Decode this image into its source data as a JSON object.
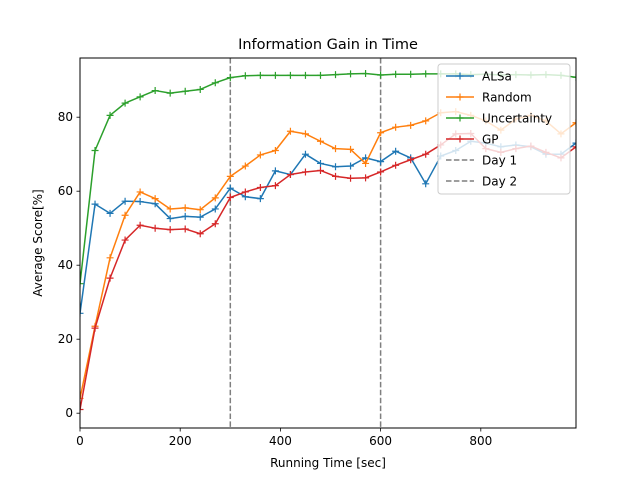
{
  "chart_data": {
    "type": "line",
    "title": "Information Gain in Time",
    "xlabel": "Running Time [sec]",
    "ylabel": "Average Score[%]",
    "xlim": [
      0,
      990
    ],
    "ylim": [
      -4,
      96
    ],
    "xticks": [
      0,
      200,
      400,
      600,
      800
    ],
    "yticks": [
      0,
      20,
      40,
      60,
      80
    ],
    "grid": false,
    "legend_position": "top-right",
    "x": [
      0,
      30,
      60,
      90,
      120,
      150,
      180,
      210,
      240,
      270,
      300,
      330,
      360,
      390,
      420,
      450,
      480,
      510,
      540,
      570,
      600,
      630,
      660,
      690,
      720,
      750,
      780,
      810,
      840,
      870,
      900,
      930,
      960,
      990
    ],
    "series": [
      {
        "name": "ALSa",
        "color": "#1f77b4",
        "values": [
          27,
          56.5,
          54,
          57.3,
          57.2,
          56.6,
          52.6,
          53.2,
          53,
          55.2,
          60.8,
          58.5,
          58,
          65.5,
          64.5,
          70,
          67.5,
          66.6,
          66.8,
          69,
          68,
          70.8,
          69,
          62,
          69.5,
          71,
          73.5,
          73,
          72,
          72.5,
          72,
          70,
          70,
          73
        ]
      },
      {
        "name": "Random",
        "color": "#ff7f0e",
        "values": [
          4,
          23.5,
          42,
          53.5,
          59.8,
          58,
          55.2,
          55.5,
          55,
          58.2,
          64,
          66.8,
          69.8,
          71,
          76.2,
          75.5,
          73.5,
          71.5,
          71.3,
          67.5,
          75.8,
          77.3,
          77.8,
          79,
          81.2,
          81.5,
          80.5,
          79,
          76.5,
          79.5,
          80.5,
          79,
          75.5,
          78.5
        ]
      },
      {
        "name": "Uncertainty",
        "color": "#2ca02c",
        "values": [
          35,
          71,
          80.5,
          83.8,
          85.5,
          87.2,
          86.5,
          87,
          87.5,
          89.3,
          90.7,
          91.2,
          91.3,
          91.3,
          91.3,
          91.3,
          91.3,
          91.5,
          91.7,
          91.8,
          91.4,
          91.6,
          91.6,
          91.7,
          91.7,
          91.7,
          91.5,
          91.6,
          91.4,
          91.5,
          91.4,
          91.5,
          91.3,
          90.8
        ]
      },
      {
        "name": "GP",
        "color": "#d62728",
        "values": [
          1,
          23,
          36.5,
          46.8,
          50.8,
          50,
          49.6,
          49.8,
          48.5,
          51.2,
          58.3,
          59.8,
          61,
          61.5,
          64.5,
          65.2,
          65.6,
          64,
          63.5,
          63.6,
          65.2,
          67,
          68.5,
          70,
          72.5,
          75.5,
          75.6,
          71.5,
          70.5,
          71.5,
          72.2,
          70.5,
          69,
          72
        ]
      }
    ],
    "vlines": [
      {
        "name": "Day 1",
        "x": 300,
        "color": "#7f7f7f"
      },
      {
        "name": "Day 2",
        "x": 600,
        "color": "#7f7f7f"
      }
    ]
  }
}
